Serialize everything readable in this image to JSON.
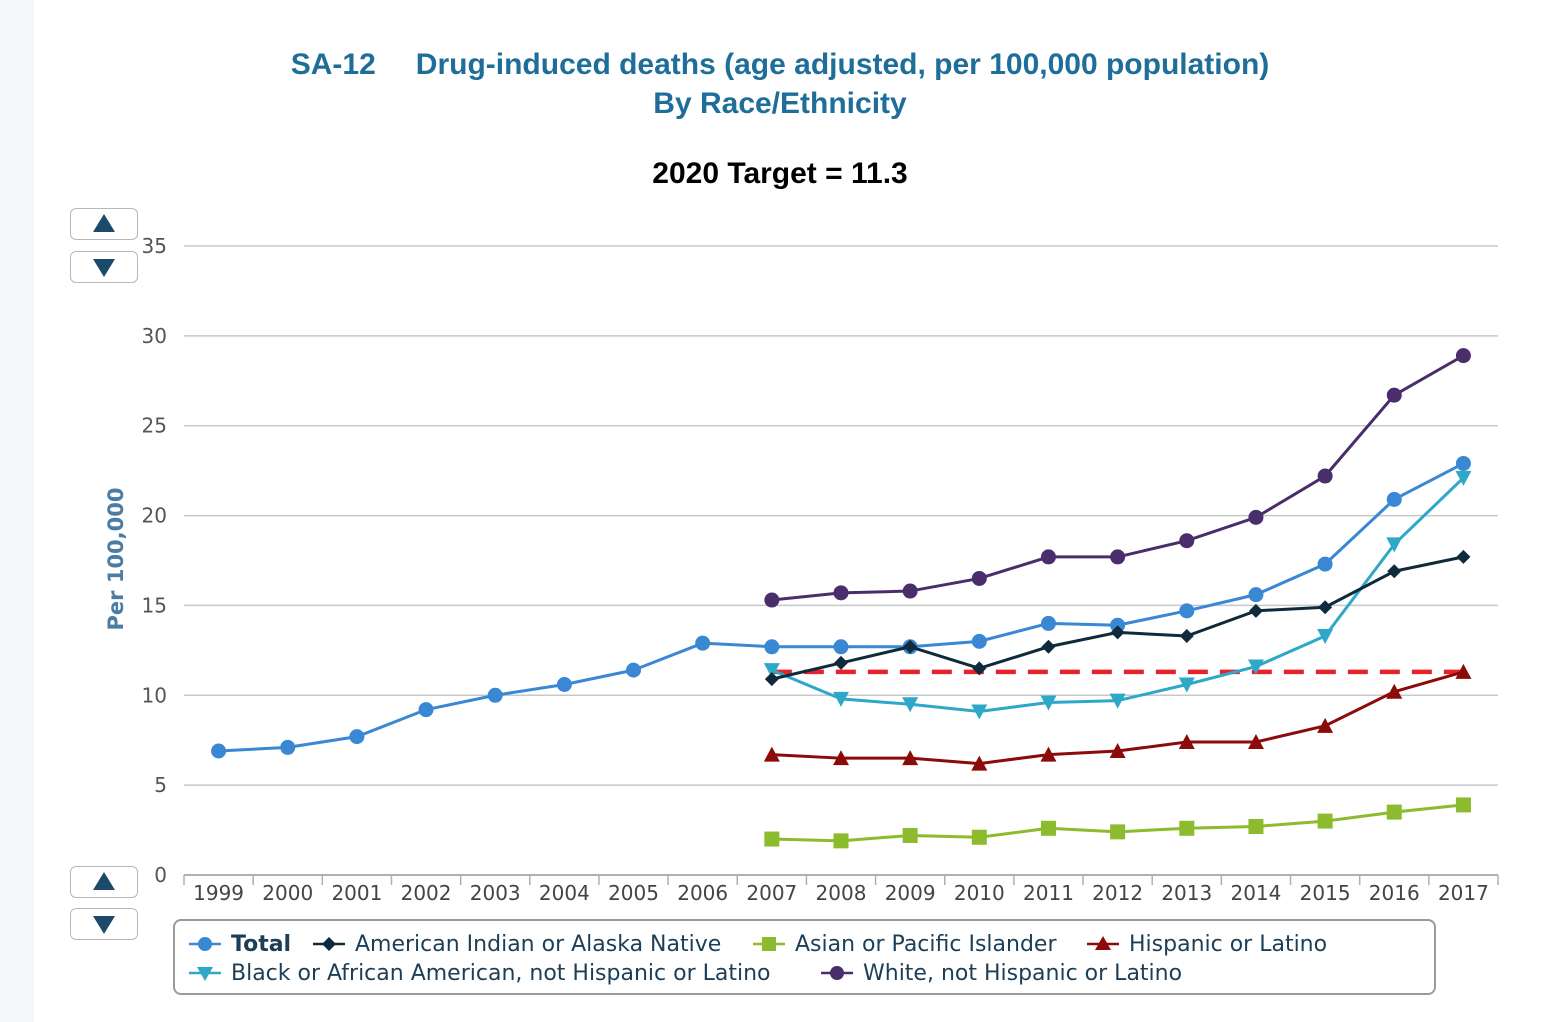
{
  "header": {
    "code": "SA-12",
    "title": "Drug-induced deaths (age adjusted, per 100,000 population)",
    "subtitle": "By Race/Ethnicity",
    "target_text": "2020 Target = 11.3"
  },
  "nav_icons": {
    "up": "triangle-up-icon",
    "down": "triangle-down-icon"
  },
  "colors": {
    "total": "#3a87d4",
    "american_indian": "#0f2a3a",
    "asian": "#8cbb2e",
    "hispanic": "#8c0a0a",
    "black": "#2ea8c9",
    "white": "#4a2d6b",
    "target": "#e8222a",
    "axis_label": "#4a7ca4",
    "grid": "#c8c8c8"
  },
  "chart_data": {
    "type": "line",
    "title": "Drug-induced deaths (age adjusted, per 100,000 population)",
    "subtitle": "By Race/Ethnicity",
    "ylabel": "Per 100,000",
    "xlabel": "",
    "ylim": [
      0,
      35
    ],
    "yticks": [
      "0",
      "5",
      "10",
      "15",
      "20",
      "25",
      "30",
      "35"
    ],
    "categories": [
      "1999",
      "2000",
      "2001",
      "2002",
      "2003",
      "2004",
      "2005",
      "2006",
      "2007",
      "2008",
      "2009",
      "2010",
      "2011",
      "2012",
      "2013",
      "2014",
      "2015",
      "2016",
      "2017"
    ],
    "grid": true,
    "legend_position": "bottom",
    "target": {
      "value": 11.3,
      "from": "2007",
      "to": "2017",
      "style": "dashed"
    },
    "series": [
      {
        "key": "total",
        "name": "Total",
        "marker": "circle",
        "values": [
          6.9,
          7.1,
          7.7,
          9.2,
          10.0,
          10.6,
          11.4,
          12.9,
          12.7,
          12.7,
          12.7,
          13.0,
          14.0,
          13.9,
          14.7,
          15.6,
          17.3,
          20.9,
          22.9
        ]
      },
      {
        "key": "american_indian",
        "name": "American Indian or Alaska Native",
        "marker": "diamond",
        "values": [
          null,
          null,
          null,
          null,
          null,
          null,
          null,
          null,
          10.9,
          11.8,
          12.7,
          11.5,
          12.7,
          13.5,
          13.3,
          14.7,
          14.9,
          16.9,
          17.7
        ]
      },
      {
        "key": "asian",
        "name": "Asian or Pacific Islander",
        "marker": "square",
        "values": [
          null,
          null,
          null,
          null,
          null,
          null,
          null,
          null,
          2.0,
          1.9,
          2.2,
          2.1,
          2.6,
          2.4,
          2.6,
          2.7,
          3.0,
          3.5,
          3.9
        ]
      },
      {
        "key": "hispanic",
        "name": "Hispanic or Latino",
        "marker": "triangle-up",
        "values": [
          null,
          null,
          null,
          null,
          null,
          null,
          null,
          null,
          6.7,
          6.5,
          6.5,
          6.2,
          6.7,
          6.9,
          7.4,
          7.4,
          8.3,
          10.2,
          11.3
        ]
      },
      {
        "key": "black",
        "name": "Black or African American, not Hispanic or Latino",
        "marker": "triangle-down",
        "values": [
          null,
          null,
          null,
          null,
          null,
          null,
          null,
          null,
          11.4,
          9.8,
          9.5,
          9.1,
          9.6,
          9.7,
          10.6,
          11.6,
          13.3,
          18.4,
          22.1
        ]
      },
      {
        "key": "white",
        "name": "White, not Hispanic or Latino",
        "marker": "circle",
        "values": [
          null,
          null,
          null,
          null,
          null,
          null,
          null,
          null,
          15.3,
          15.7,
          15.8,
          16.5,
          17.7,
          17.7,
          18.6,
          19.9,
          22.2,
          26.7,
          28.9
        ]
      }
    ]
  }
}
